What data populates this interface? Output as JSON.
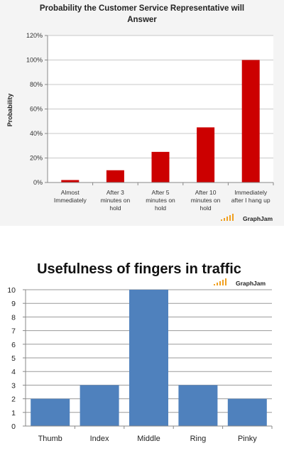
{
  "chart_data": [
    {
      "type": "bar",
      "title_lines": [
        "Probability the Customer Service Representative will",
        "Answer"
      ],
      "ylabel": "Probability",
      "xlabel": "",
      "ylim": [
        0,
        120
      ],
      "yticks": [
        "0%",
        "20%",
        "40%",
        "60%",
        "80%",
        "100%",
        "120%"
      ],
      "categories": [
        [
          "Almost",
          "Immediately"
        ],
        [
          "After 3",
          "minutes on",
          "hold"
        ],
        [
          "After 5",
          "minutes on",
          "hold"
        ],
        [
          "After 10",
          "minutes on",
          "hold"
        ],
        [
          "Immediately",
          "after I hang up"
        ]
      ],
      "values": [
        2,
        10,
        25,
        45,
        100
      ],
      "bar_color": "#cc0000",
      "grid": true,
      "legend": "none",
      "brand": "GraphJam"
    },
    {
      "type": "bar",
      "title": "Usefulness of fingers in traffic",
      "xlabel": "",
      "ylabel": "",
      "ylim": [
        0,
        10
      ],
      "yticks": [
        "0",
        "1",
        "2",
        "3",
        "4",
        "5",
        "6",
        "7",
        "8",
        "9",
        "10"
      ],
      "categories": [
        "Thumb",
        "Index",
        "Middle",
        "Ring",
        "Pinky"
      ],
      "values": [
        2,
        3,
        10,
        3,
        2
      ],
      "bar_color": "#4f81bd",
      "grid": true,
      "legend": "none",
      "brand": "GraphJam"
    }
  ]
}
